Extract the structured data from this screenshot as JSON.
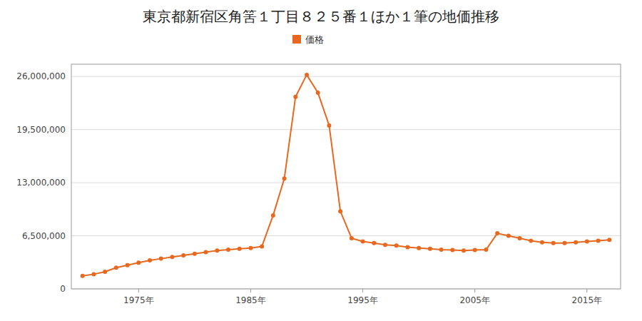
{
  "chart_data": {
    "type": "line",
    "title": "東京都新宿区角筈１丁目８２５番１ほか１筆の地価推移",
    "x": [
      1970,
      1971,
      1972,
      1973,
      1974,
      1975,
      1976,
      1977,
      1978,
      1979,
      1980,
      1981,
      1982,
      1983,
      1984,
      1985,
      1986,
      1987,
      1988,
      1989,
      1990,
      1991,
      1992,
      1993,
      1994,
      1995,
      1996,
      1997,
      1998,
      1999,
      2000,
      2001,
      2002,
      2003,
      2004,
      2005,
      2006,
      2007,
      2008,
      2009,
      2010,
      2011,
      2012,
      2013,
      2014,
      2015,
      2016,
      2017
    ],
    "series": [
      {
        "name": "価格",
        "color": "#e86820",
        "marker": "circle",
        "values": [
          1600000,
          1800000,
          2100000,
          2600000,
          2900000,
          3200000,
          3500000,
          3700000,
          3900000,
          4100000,
          4300000,
          4500000,
          4700000,
          4800000,
          4900000,
          5000000,
          5200000,
          9000000,
          13500000,
          23500000,
          26200000,
          24000000,
          20000000,
          9500000,
          6200000,
          5800000,
          5600000,
          5400000,
          5300000,
          5100000,
          5000000,
          4900000,
          4800000,
          4750000,
          4700000,
          4750000,
          4800000,
          6800000,
          6500000,
          6200000,
          5900000,
          5700000,
          5600000,
          5600000,
          5700000,
          5800000,
          5900000,
          6000000
        ]
      }
    ],
    "xlim": [
      1969,
      2018
    ],
    "xticks": [
      {
        "value": 1975,
        "label": "1975年"
      },
      {
        "value": 1985,
        "label": "1985年"
      },
      {
        "value": 1995,
        "label": "1995年"
      },
      {
        "value": 2005,
        "label": "2005年"
      },
      {
        "value": 2015,
        "label": "2015年"
      }
    ],
    "ylim": [
      0,
      27500000
    ],
    "yticks": [
      0,
      {
        "value": 6500000,
        "label": "6,500,000"
      },
      {
        "value": 13000000,
        "label": "13,000,000"
      },
      {
        "value": 19500000,
        "label": "19,500,000"
      },
      {
        "value": 26000000,
        "label": "26,000,000"
      }
    ],
    "grid": true,
    "legend": "top"
  }
}
